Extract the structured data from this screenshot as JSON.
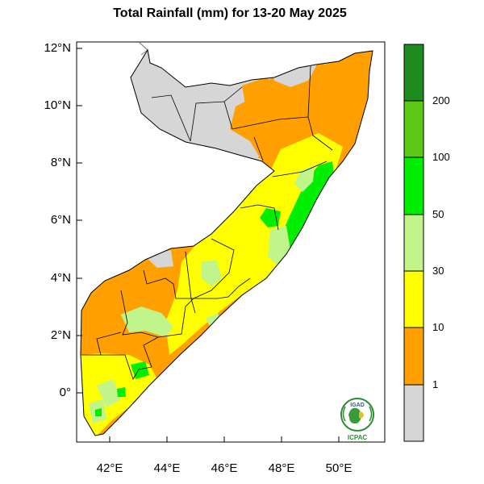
{
  "title": "Total Rainfall (mm) for 13-20 May 2025",
  "lat_ticks": [
    "12°N",
    "10°N",
    "8°N",
    "6°N",
    "4°N",
    "2°N",
    "0°"
  ],
  "lon_ticks": [
    "42°E",
    "44°E",
    "46°E",
    "48°E",
    "50°E"
  ],
  "colorbar": {
    "labels": [
      "200",
      "100",
      "50",
      "30",
      "10",
      "1"
    ],
    "colors": [
      "#1e8b1e",
      "#5dc814",
      "#00ee00",
      "#bff58a",
      "#ffff00",
      "#ffa000",
      "#d6d6d6"
    ]
  },
  "logo": {
    "org_top": "IGAD",
    "org_bottom": "ICPAC"
  },
  "map": {
    "region": "Somalia",
    "lat_range": [
      -1.6,
      12.2
    ],
    "lon_range": [
      41.0,
      51.6
    ],
    "rainfall_pattern": [
      {
        "area": "North / Somaliland interior",
        "class": "below 1 mm"
      },
      {
        "area": "North-east coast and Puntland",
        "class": "1-10 mm"
      },
      {
        "area": "Central",
        "class": "10-30 mm"
      },
      {
        "area": "Central coast",
        "class": "30-100 mm"
      },
      {
        "area": "South-west",
        "class": "1-10 mm"
      },
      {
        "area": "Far south",
        "class": "10-100 mm"
      }
    ]
  }
}
